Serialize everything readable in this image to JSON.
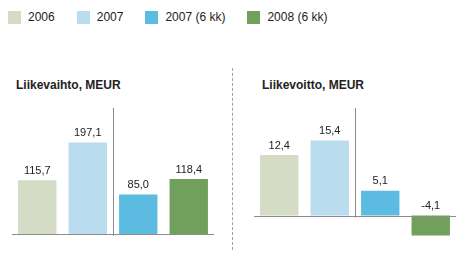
{
  "chart_data": [
    {
      "type": "bar",
      "title": "Liikevaihto, MEUR",
      "categories": [
        "2006",
        "2007",
        "2007 (6 kk)",
        "2008 (6 kk)"
      ],
      "values": [
        115.7,
        197.1,
        85.0,
        118.4
      ],
      "value_labels": [
        "115,7",
        "197,1",
        "85,0",
        "118,4"
      ],
      "colors": [
        "#d5dcc6",
        "#b9dcef",
        "#5cbbe1",
        "#70a05b"
      ],
      "data_labels": true,
      "tick_labels": false,
      "grid": false,
      "legend": "top"
    },
    {
      "type": "bar",
      "title": "Liikevoitto, MEUR",
      "categories": [
        "2006",
        "2007",
        "2007 (6 kk)",
        "2008 (6 kk)"
      ],
      "values": [
        12.4,
        15.4,
        5.1,
        -4.1
      ],
      "value_labels": [
        "12,4",
        "15,4",
        "5,1",
        "-4,1"
      ],
      "colors": [
        "#d5dcc6",
        "#b9dcef",
        "#5cbbe1",
        "#70a05b"
      ],
      "data_labels": true,
      "tick_labels": false,
      "grid": false
    }
  ]
}
